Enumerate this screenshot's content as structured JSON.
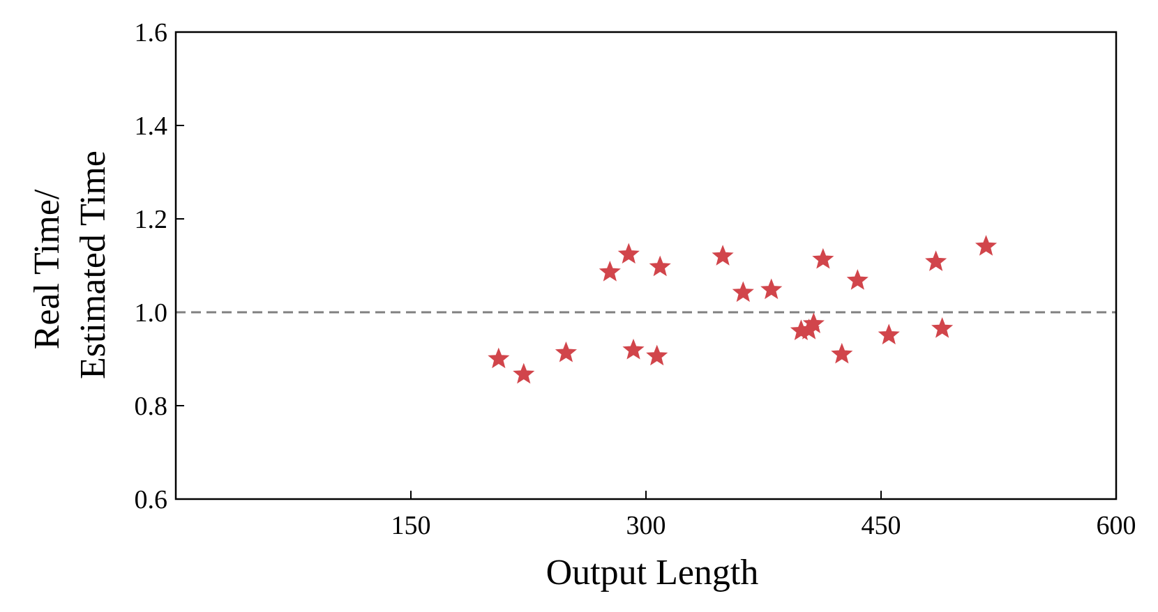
{
  "chart_data": {
    "type": "scatter",
    "title": "",
    "xlabel": "Output Length",
    "ylabel_lines": [
      "Real Time/",
      "Estimated Time"
    ],
    "xlim": [
      0,
      600
    ],
    "ylim": [
      0.6,
      1.6
    ],
    "xticks": [
      150,
      300,
      450,
      600
    ],
    "xtick_labels": [
      "150",
      "300",
      "450",
      "600"
    ],
    "yticks": [
      0.6,
      0.8,
      1.0,
      1.2,
      1.4,
      1.6
    ],
    "ytick_labels": [
      "0.6",
      "0.8",
      "1.0",
      "1.2",
      "1.4",
      "1.6"
    ],
    "reference_line": {
      "y": 1.0,
      "style": "dashed",
      "color": "#808080"
    },
    "marker": "star",
    "marker_color": "#d1454b",
    "grid": false,
    "points": [
      {
        "x": 206,
        "y": 0.9
      },
      {
        "x": 222,
        "y": 0.867
      },
      {
        "x": 249,
        "y": 0.913
      },
      {
        "x": 277,
        "y": 1.086
      },
      {
        "x": 289,
        "y": 1.124
      },
      {
        "x": 292,
        "y": 0.919
      },
      {
        "x": 307,
        "y": 0.906
      },
      {
        "x": 309,
        "y": 1.097
      },
      {
        "x": 349,
        "y": 1.12
      },
      {
        "x": 362,
        "y": 1.042
      },
      {
        "x": 380,
        "y": 1.048
      },
      {
        "x": 399,
        "y": 0.96
      },
      {
        "x": 404,
        "y": 0.962
      },
      {
        "x": 407,
        "y": 0.975
      },
      {
        "x": 413,
        "y": 1.113
      },
      {
        "x": 425,
        "y": 0.91
      },
      {
        "x": 435,
        "y": 1.068
      },
      {
        "x": 455,
        "y": 0.951
      },
      {
        "x": 485,
        "y": 1.108
      },
      {
        "x": 489,
        "y": 0.965
      },
      {
        "x": 517,
        "y": 1.141
      }
    ]
  }
}
